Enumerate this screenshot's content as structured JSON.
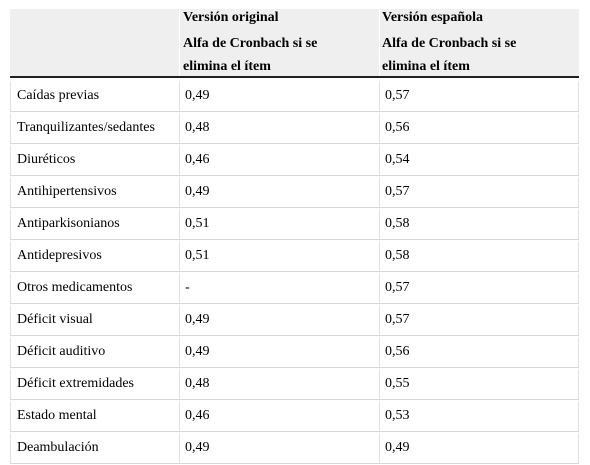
{
  "table": {
    "headers": {
      "col0": "",
      "col1": {
        "line1": "Versión original",
        "line2": "Alfa de Cronbach si se",
        "line3": "elimina el ítem"
      },
      "col2": {
        "line1": "Versión española",
        "line2": "Alfa de Cronbach si se",
        "line3": "elimina el ítem"
      }
    },
    "rows": [
      {
        "item": "Caídas previas",
        "original": "0,49",
        "spanish": "0,57"
      },
      {
        "item": "Tranquilizantes/sedantes",
        "original": "0,48",
        "spanish": "0,56"
      },
      {
        "item": "Diuréticos",
        "original": "0,46",
        "spanish": "0,54"
      },
      {
        "item": "Antihipertensivos",
        "original": "0,49",
        "spanish": "0,57"
      },
      {
        "item": "Antiparkisonianos",
        "original": "0,51",
        "spanish": "0,58"
      },
      {
        "item": "Antidepresivos",
        "original": "0,51",
        "spanish": "0,58"
      },
      {
        "item": "Otros medicamentos",
        "original": "-",
        "spanish": "0,57"
      },
      {
        "item": "Déficit visual",
        "original": "0,49",
        "spanish": "0,57"
      },
      {
        "item": "Déficit auditivo",
        "original": "0,49",
        "spanish": "0,56"
      },
      {
        "item": "Déficit extremidades",
        "original": "0,48",
        "spanish": "0,55"
      },
      {
        "item": "Estado mental",
        "original": "0,46",
        "spanish": "0,53"
      },
      {
        "item": "Deambulación",
        "original": "0,49",
        "spanish": "0,49"
      }
    ]
  }
}
